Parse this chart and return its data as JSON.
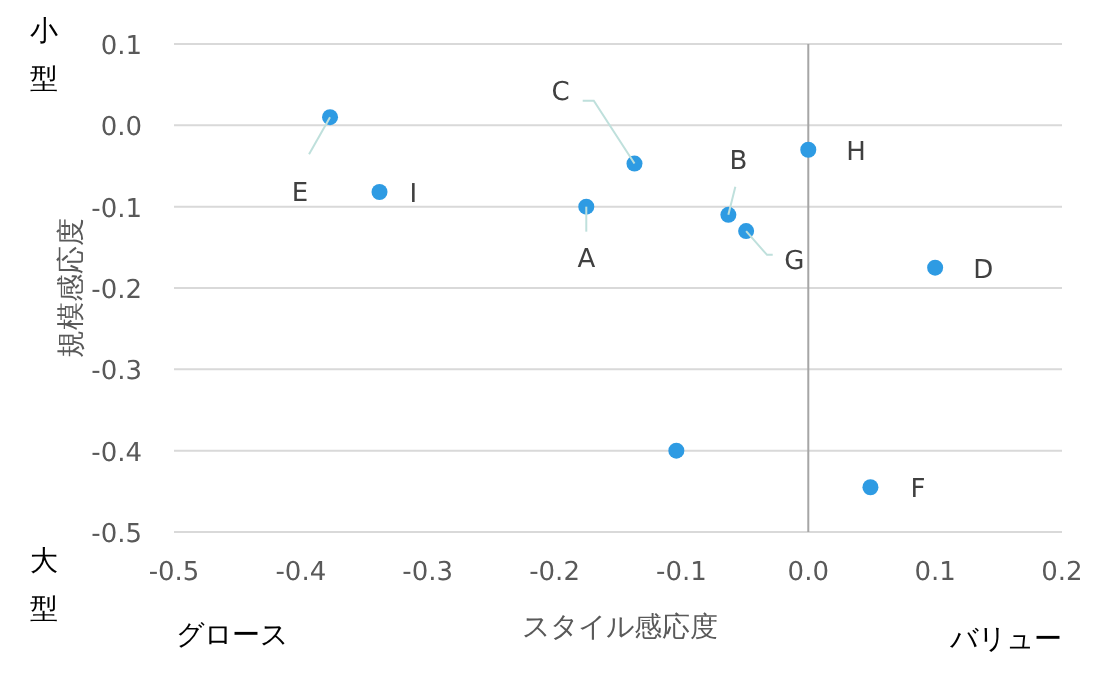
{
  "chart_data": {
    "type": "scatter",
    "xlabel": "スタイル感応度",
    "ylabel": "規模感応度",
    "x": [
      -0.377,
      -0.338,
      -0.175,
      -0.137,
      -0.063,
      -0.049,
      0.0,
      0.1,
      -0.104,
      0.049
    ],
    "series": [
      {
        "color": "#2e9be3",
        "values": [
          0.01,
          -0.082,
          -0.1,
          -0.047,
          -0.11,
          -0.13,
          -0.03,
          -0.175,
          -0.4,
          -0.445
        ]
      }
    ],
    "xlim": [
      -0.5,
      0.2
    ],
    "xticks": [
      {
        "value": -0.5,
        "label": "-0.5"
      },
      {
        "value": -0.4,
        "label": "-0.4"
      },
      {
        "value": -0.3,
        "label": "-0.3"
      },
      {
        "value": -0.2,
        "label": "-0.2"
      },
      {
        "value": -0.1,
        "label": "-0.1"
      },
      {
        "value": 0,
        "label": "0.0"
      },
      0.1,
      0.2
    ],
    "ylim": [
      -0.5,
      0.1
    ],
    "yticks": [
      {
        "value": -0.5,
        "label": "-0.5"
      },
      {
        "value": -0.4,
        "label": "-0.4"
      },
      {
        "value": -0.3,
        "label": "-0.3"
      },
      {
        "value": -0.2,
        "label": "-0.2"
      },
      {
        "value": -0.1,
        "label": "-0.1"
      },
      {
        "value": 0,
        "label": "0.0"
      },
      0.1
    ],
    "ref_lines": [
      {
        "axis": "x",
        "value": 0,
        "color": "#a6a6a6"
      }
    ],
    "grid": "y",
    "marker": "circle",
    "annotations": [
      {
        "text": "E",
        "x": -0.377,
        "y": 0.01
      },
      {
        "text": "I",
        "x": -0.338,
        "y": -0.082
      },
      {
        "text": "A",
        "x": -0.175,
        "y": -0.1
      },
      {
        "text": "C",
        "x": -0.137,
        "y": -0.047
      },
      {
        "text": "B",
        "x": -0.063,
        "y": -0.11
      },
      {
        "text": "G",
        "x": -0.049,
        "y": -0.13
      },
      {
        "text": "H",
        "x": 0.0,
        "y": -0.03
      },
      {
        "text": "D",
        "x": 0.1,
        "y": -0.175
      },
      {
        "text": "F",
        "x": 0.049,
        "y": -0.445
      },
      "小型",
      "大型",
      "グロース",
      "バリュー"
    ]
  }
}
